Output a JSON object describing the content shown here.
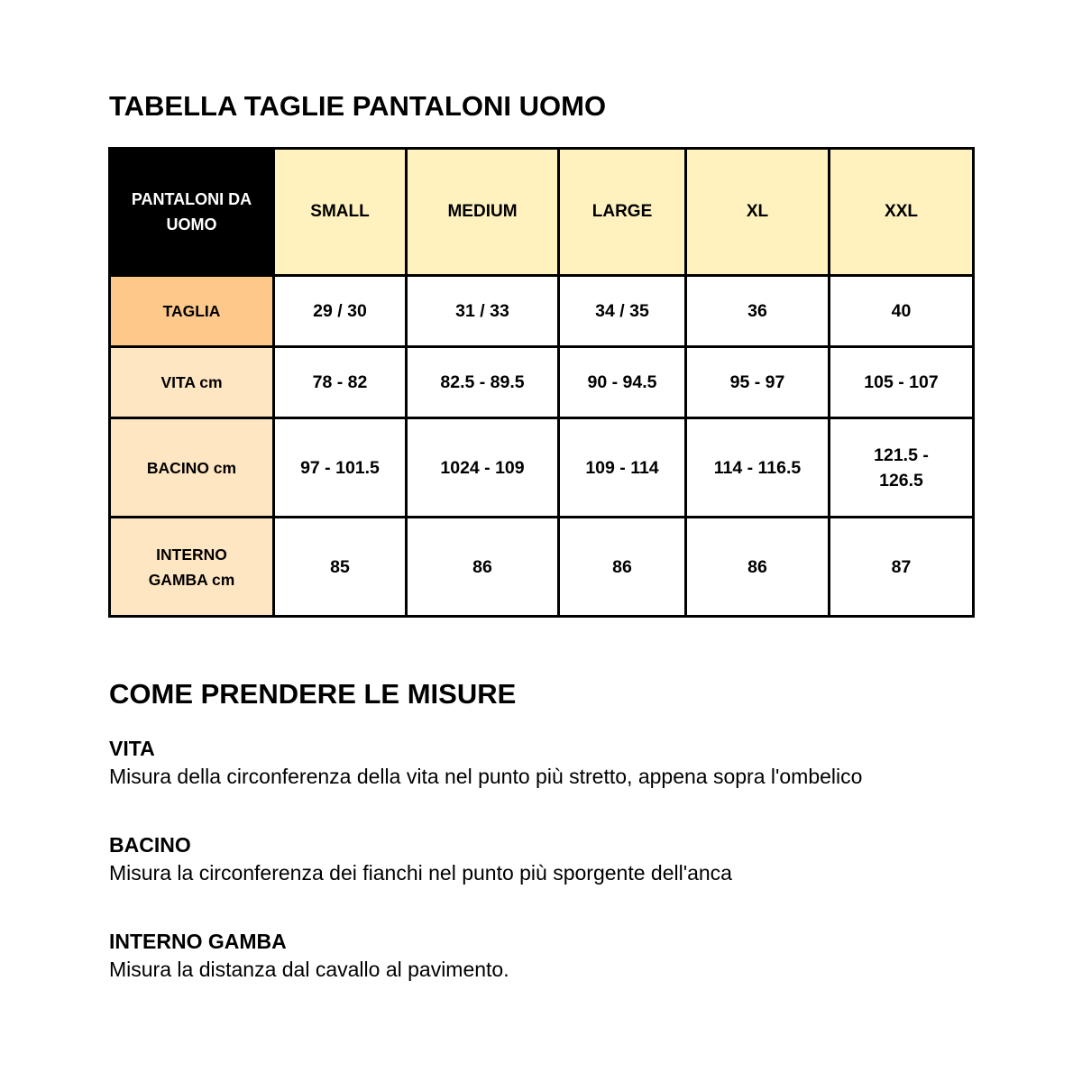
{
  "title": "TABELLA TAGLIE PANTALONI UOMO",
  "table": {
    "corner": "PANTALONI DA UOMO",
    "columns": [
      "SMALL",
      "MEDIUM",
      "LARGE",
      "XL",
      "XXL"
    ],
    "rows": [
      {
        "label": "TAGLIA",
        "values": [
          "29 / 30",
          "31 / 33",
          "34 / 35",
          "36",
          "40"
        ]
      },
      {
        "label": "VITA cm",
        "values": [
          "78 - 82",
          "82.5 - 89.5",
          "90 - 94.5",
          "95 - 97",
          "105 - 107"
        ]
      },
      {
        "label": "BACINO cm",
        "values": [
          "97 - 101.5",
          "1024 - 109",
          "109 - 114",
          "114 - 116.5",
          "121.5 - 126.5"
        ]
      },
      {
        "label": "INTERNO GAMBA cm",
        "values": [
          "85",
          "86",
          "86",
          "86",
          "87"
        ]
      }
    ],
    "colors": {
      "header": "#fff2bf",
      "taglia": "#fdc98a",
      "measure": "#ffe6c2",
      "corner": "#000000"
    }
  },
  "guide": {
    "title": "COME PRENDERE LE MISURE",
    "sections": [
      {
        "heading": "VITA",
        "text": "Misura della circonferenza della vita nel punto più stretto, appena sopra l'ombelico"
      },
      {
        "heading": "BACINO",
        "text": "Misura la circonferenza dei fianchi nel punto più sporgente dell'anca"
      },
      {
        "heading": "INTERNO GAMBA",
        "text": "Misura la distanza dal cavallo al pavimento."
      }
    ]
  }
}
